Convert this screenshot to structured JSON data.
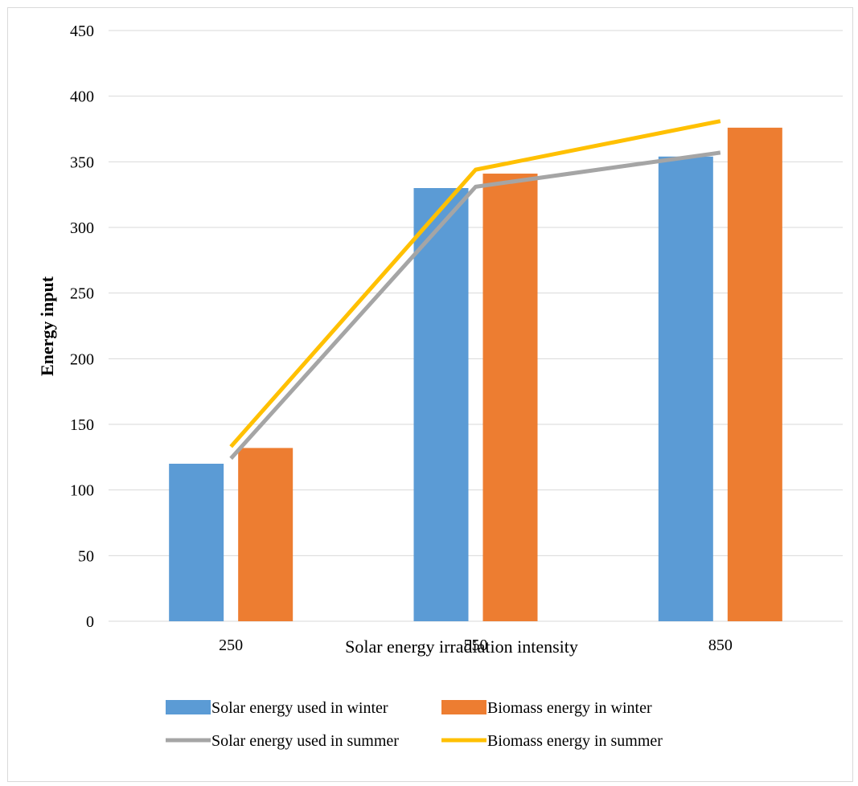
{
  "chart_data": {
    "type": "bar",
    "categories": [
      "250",
      "550",
      "850"
    ],
    "ylim": [
      0,
      450
    ],
    "yticks": [
      0,
      50,
      100,
      150,
      200,
      250,
      300,
      350,
      400,
      450
    ],
    "xlabel": "Solar energy irradiation intensity",
    "ylabel": "Energy input",
    "grid": true,
    "legend_position": "bottom",
    "series": [
      {
        "name": "Solar energy used in winter",
        "kind": "bar",
        "color": "#5B9BD5",
        "values": [
          120,
          330,
          354
        ]
      },
      {
        "name": "Biomass energy in winter",
        "kind": "bar",
        "color": "#ED7D31",
        "values": [
          132,
          341,
          376
        ]
      },
      {
        "name": "Solar energy used in summer",
        "kind": "line",
        "color": "#A5A5A5",
        "values": [
          124,
          331,
          357
        ]
      },
      {
        "name": "Biomass energy in summer",
        "kind": "line",
        "color": "#FFC000",
        "values": [
          133,
          344,
          381
        ]
      }
    ]
  }
}
